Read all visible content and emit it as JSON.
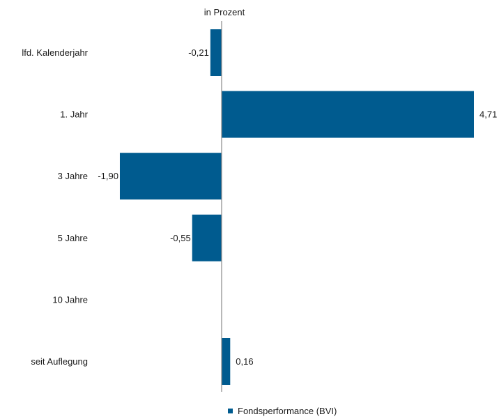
{
  "chart_data": {
    "type": "bar",
    "orientation": "horizontal",
    "title": "in Prozent",
    "categories": [
      "lfd. Kalenderjahr",
      "1. Jahr",
      "3 Jahre",
      "5 Jahre",
      "10 Jahre",
      "seit Auflegung"
    ],
    "series": [
      {
        "name": "Fondsperformance (BVI)",
        "color": "#005b8f",
        "values": [
          -0.21,
          4.71,
          -1.9,
          -0.55,
          null,
          0.16
        ],
        "labels": [
          "-0,21",
          "4,71",
          "-1,90",
          "-0,55",
          "",
          "0,16"
        ]
      }
    ],
    "xlim": [
      -4.1,
      5.0
    ],
    "grid": false,
    "legend_position": "bottom"
  }
}
